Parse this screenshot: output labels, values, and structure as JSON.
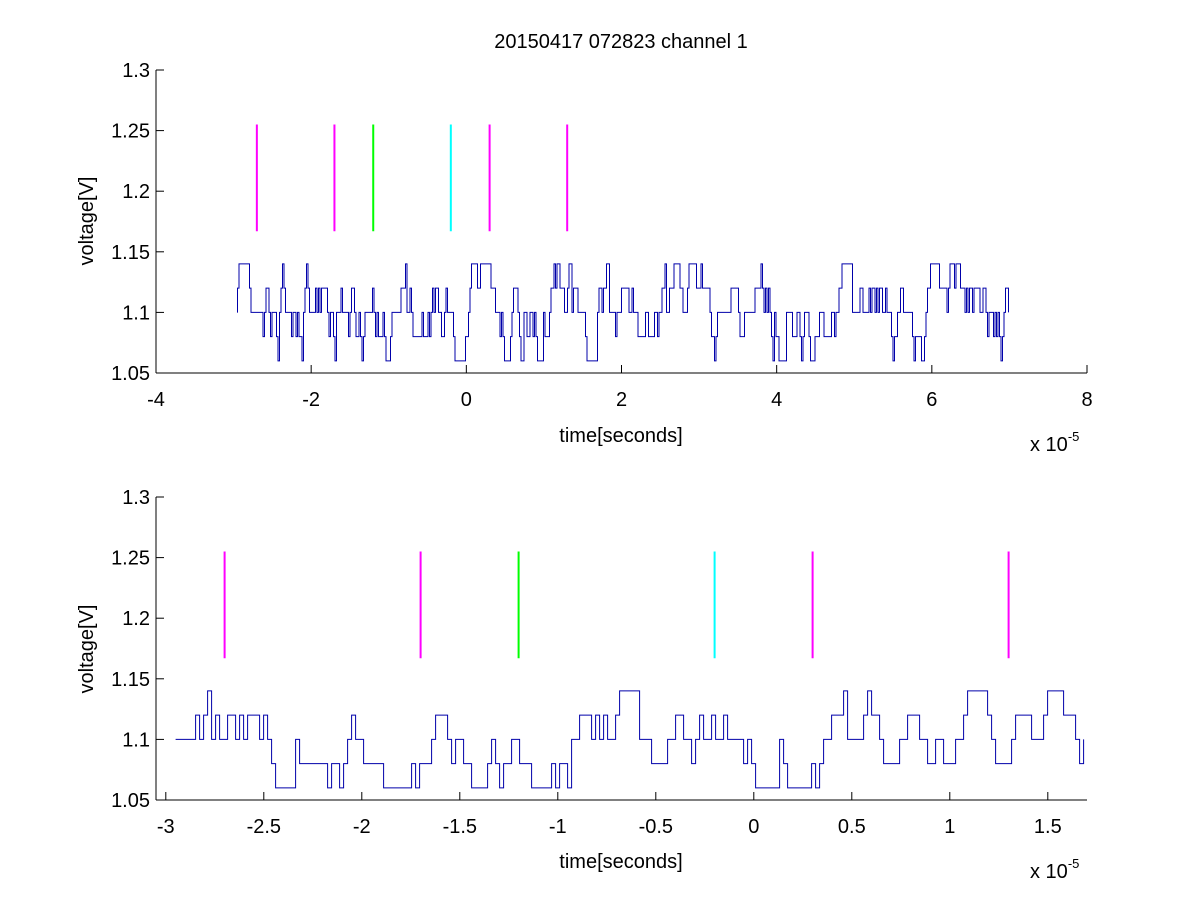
{
  "figure": {
    "title": "20150417 072823 channel 1",
    "background": "#ffffff"
  },
  "colors": {
    "signal": "#0000aa",
    "magenta": "#ff00ff",
    "green": "#00ff00",
    "cyan": "#00ffff",
    "axis": "#000000"
  },
  "chart_data": [
    {
      "type": "line",
      "xlabel": "time[seconds]",
      "ylabel": "voltage[V]",
      "x_multiplier": "x 10",
      "x_exponent": "-5",
      "xlim": [
        -4,
        8
      ],
      "ylim": [
        1.05,
        1.3
      ],
      "xticks": [
        -4,
        -2,
        0,
        2,
        4,
        6,
        8
      ],
      "xtick_labels": [
        "-4",
        "-2",
        "0",
        "2",
        "4",
        "6",
        "8"
      ],
      "yticks": [
        1.05,
        1.1,
        1.15,
        1.2,
        1.25,
        1.3
      ],
      "ytick_labels": [
        "1.05",
        "1.1",
        "1.15",
        "1.2",
        "1.25",
        "1.3"
      ],
      "grid": false,
      "signal": {
        "x_start": -2.95,
        "x_end": 7.0,
        "levels": [
          1.06,
          1.08,
          1.1,
          1.12,
          1.14
        ],
        "baseline": 1.1,
        "style": "noisy step trace"
      },
      "markers": [
        {
          "x": -2.7,
          "y_range": [
            1.167,
            1.255
          ],
          "color": "magenta"
        },
        {
          "x": -1.7,
          "y_range": [
            1.167,
            1.255
          ],
          "color": "magenta"
        },
        {
          "x": -1.2,
          "y_range": [
            1.167,
            1.255
          ],
          "color": "green"
        },
        {
          "x": -0.2,
          "y_range": [
            1.167,
            1.255
          ],
          "color": "cyan"
        },
        {
          "x": 0.3,
          "y_range": [
            1.167,
            1.255
          ],
          "color": "magenta"
        },
        {
          "x": 1.3,
          "y_range": [
            1.167,
            1.255
          ],
          "color": "magenta"
        }
      ]
    },
    {
      "type": "line",
      "xlabel": "time[seconds]",
      "ylabel": "voltage[V]",
      "x_multiplier": "x 10",
      "x_exponent": "-5",
      "xlim": [
        -3.05,
        1.7
      ],
      "ylim": [
        1.05,
        1.3
      ],
      "xticks": [
        -3,
        -2.5,
        -2,
        -1.5,
        -1,
        -0.5,
        0,
        0.5,
        1,
        1.5
      ],
      "xtick_labels": [
        "-3",
        "-2.5",
        "-2",
        "-1.5",
        "-1",
        "-0.5",
        "0",
        "0.5",
        "1",
        "1.5"
      ],
      "yticks": [
        1.05,
        1.1,
        1.15,
        1.2,
        1.25,
        1.3
      ],
      "ytick_labels": [
        "1.05",
        "1.1",
        "1.15",
        "1.2",
        "1.25",
        "1.3"
      ],
      "grid": false,
      "signal": {
        "x_start": -2.95,
        "x_end": 1.7,
        "levels": [
          1.06,
          1.08,
          1.1,
          1.12,
          1.14
        ],
        "baseline": 1.1,
        "style": "noisy step trace"
      },
      "markers": [
        {
          "x": -2.7,
          "y_range": [
            1.167,
            1.255
          ],
          "color": "magenta"
        },
        {
          "x": -1.7,
          "y_range": [
            1.167,
            1.255
          ],
          "color": "magenta"
        },
        {
          "x": -1.2,
          "y_range": [
            1.167,
            1.255
          ],
          "color": "green"
        },
        {
          "x": -0.2,
          "y_range": [
            1.167,
            1.255
          ],
          "color": "cyan"
        },
        {
          "x": 0.3,
          "y_range": [
            1.167,
            1.255
          ],
          "color": "magenta"
        },
        {
          "x": 1.3,
          "y_range": [
            1.167,
            1.255
          ],
          "color": "magenta"
        }
      ]
    }
  ]
}
